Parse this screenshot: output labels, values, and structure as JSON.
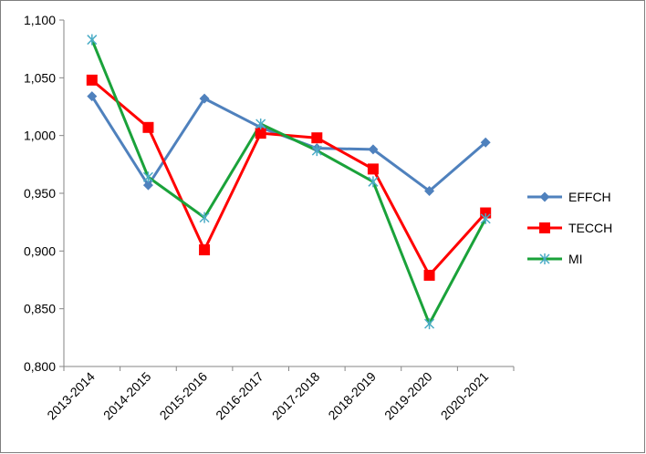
{
  "chart_data": {
    "type": "line",
    "title": "",
    "xlabel": "",
    "ylabel": "",
    "categories": [
      "2013-2014",
      "2014-2015",
      "2015-2016",
      "2016-2017",
      "2017-2018",
      "2018-2019",
      "2019-2020",
      "2020-2021"
    ],
    "ylim": [
      0.8,
      1.1
    ],
    "yticks": [
      "0,800",
      "0,850",
      "0,900",
      "0,950",
      "1,000",
      "1,050",
      "1,100"
    ],
    "grid": false,
    "legend": "right",
    "series": [
      {
        "name": "EFFCH",
        "color": "#4f81bd",
        "marker": "diamond",
        "values": [
          1.034,
          0.957,
          1.032,
          1.007,
          0.989,
          0.988,
          0.952,
          0.994
        ]
      },
      {
        "name": "TECCH",
        "color": "#ff0000",
        "marker": "square",
        "values": [
          1.048,
          1.007,
          0.901,
          1.002,
          0.998,
          0.971,
          0.879,
          0.933
        ]
      },
      {
        "name": "MI",
        "color": "#1aa23a",
        "marker_color": "#4bacc6",
        "marker": "star",
        "values": [
          1.083,
          0.964,
          0.929,
          1.01,
          0.987,
          0.96,
          0.837,
          0.928
        ]
      }
    ]
  }
}
